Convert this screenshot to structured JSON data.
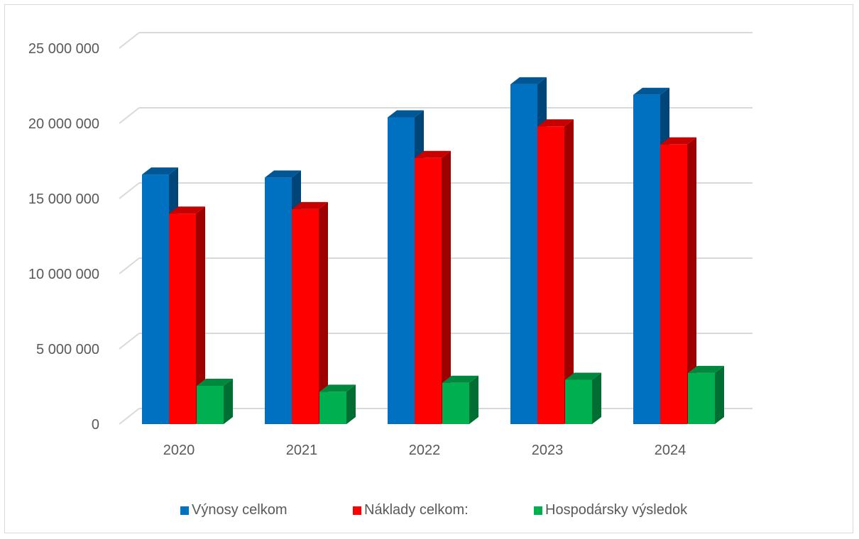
{
  "chart_data": {
    "type": "bar",
    "title": "",
    "xlabel": "",
    "ylabel": "",
    "categories": [
      "2020",
      "2021",
      "2022",
      "2023",
      "2024"
    ],
    "ylim": [
      0,
      25000000
    ],
    "yticks": [
      0,
      5000000,
      10000000,
      15000000,
      20000000,
      25000000
    ],
    "ytick_labels": [
      "0",
      "5 000 000",
      "10 000 000",
      "15 000 000",
      "20 000 000",
      "25 000 000"
    ],
    "grid": true,
    "three_d": true,
    "legend_position": "bottom",
    "series": [
      {
        "name": "Výnosy celkom",
        "color": "#0070c0",
        "values": [
          16600000,
          16400000,
          20400000,
          22600000,
          21900000
        ]
      },
      {
        "name": "Náklady celkom:",
        "color": "#ff0000",
        "values": [
          14000000,
          14300000,
          17700000,
          19800000,
          18600000
        ]
      },
      {
        "name": "Hospodársky výsledok",
        "color": "#00b050",
        "values": [
          2550000,
          2150000,
          2750000,
          2950000,
          3400000
        ]
      }
    ]
  }
}
